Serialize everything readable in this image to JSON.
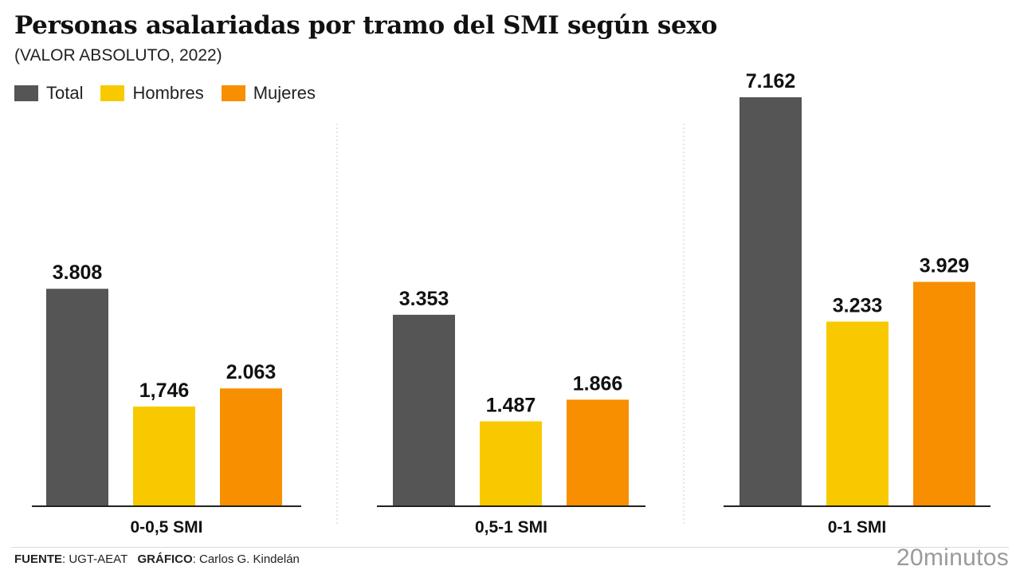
{
  "title": "Personas asalariadas por tramo del SMI según sexo",
  "subtitle": "(VALOR ABSOLUTO, 2022)",
  "legend": [
    {
      "label": "Total",
      "color": "#555555"
    },
    {
      "label": "Hombres",
      "color": "#f9c900"
    },
    {
      "label": "Mujeres",
      "color": "#f78f00"
    }
  ],
  "footer": {
    "source_label": "FUENTE",
    "source_value": ": UGT-AEAT",
    "credit_label": "GRÁFICO",
    "credit_value": ": Carlos G. Kindelán"
  },
  "logo": "20minutos",
  "chart_data": {
    "type": "bar",
    "title": "Personas asalariadas por tramo del SMI según sexo",
    "subtitle": "(VALOR ABSOLUTO, 2022)",
    "categories": [
      "0-0,5 SMI",
      "0,5-1 SMI",
      "0-1 SMI"
    ],
    "series": [
      {
        "name": "Total",
        "color": "#555555",
        "values": [
          3808,
          3353,
          7162
        ],
        "labels": [
          "3.808",
          "3.353",
          "7.162"
        ]
      },
      {
        "name": "Hombres",
        "color": "#f9c900",
        "values": [
          1746,
          1487,
          3233
        ],
        "labels": [
          "1,746",
          "1.487",
          "3.233"
        ]
      },
      {
        "name": "Mujeres",
        "color": "#f78f00",
        "values": [
          2063,
          1866,
          3929
        ],
        "labels": [
          "2.063",
          "1.866",
          "3.929"
        ]
      }
    ],
    "ylim": [
      0,
      7162
    ],
    "xlabel": "",
    "ylabel": "",
    "grid": false,
    "legend_position": "top-left"
  }
}
